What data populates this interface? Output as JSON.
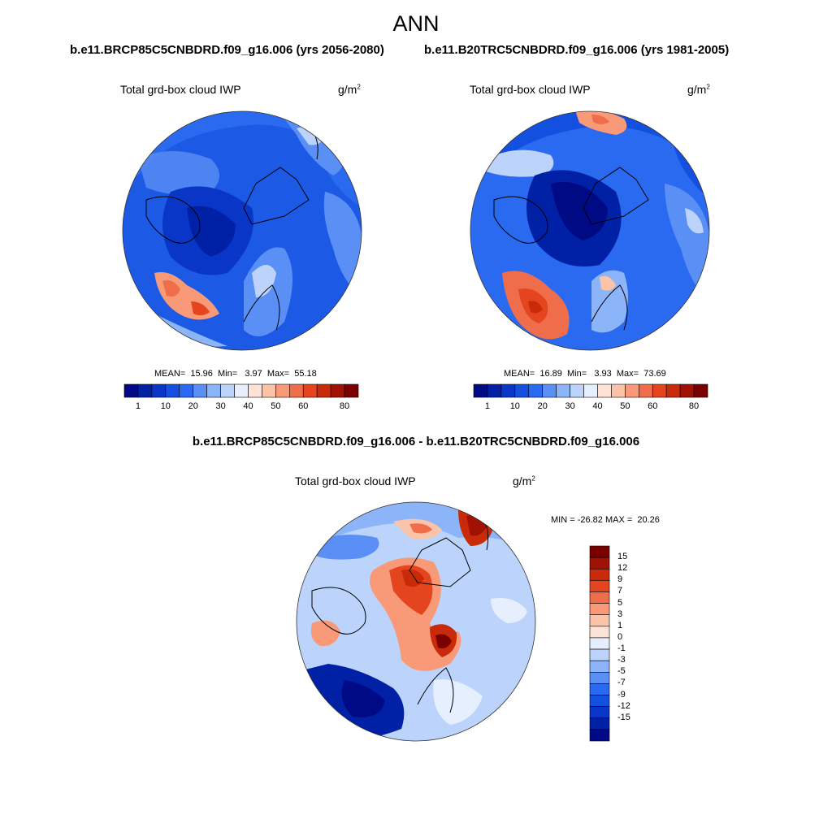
{
  "figure": {
    "season": "ANN",
    "variable": "Total grd-box cloud IWP",
    "units_base": "g/m",
    "units_exp": "2"
  },
  "panels": {
    "left": {
      "case": "b.e11.BRCP85C5CNBDRD.f09_g16.006 (yrs 2056-2080)",
      "stats_label_mean": "MEAN=",
      "stats_mean": "15.96",
      "stats_label_min": "Min=",
      "stats_min": "3.97",
      "stats_label_max": "Max=",
      "stats_max": "55.18"
    },
    "right": {
      "case": "b.e11.B20TRC5CNBDRD.f09_g16.006 (yrs 1981-2005)",
      "stats_label_mean": "MEAN=",
      "stats_mean": "16.89",
      "stats_label_min": "Min=",
      "stats_min": "3.93",
      "stats_label_max": "Max=",
      "stats_max": "73.69"
    },
    "diff": {
      "title": "b.e11.BRCP85C5CNBDRD.f09_g16.006 - b.e11.B20TRC5CNBDRD.f09_g16.006",
      "stats": "MIN = -26.82 MAX =  20.26"
    }
  },
  "colorbars": {
    "abs_colors": [
      "#000a85",
      "#0020a6",
      "#0a36c8",
      "#1450e0",
      "#2a6af0",
      "#5a8ff5",
      "#8cb4f8",
      "#bcd4fb",
      "#e6effd",
      "#fde3d6",
      "#fbc4a8",
      "#f89a78",
      "#f06d4b",
      "#e4451f",
      "#c82a0a",
      "#a01204",
      "#7a0000"
    ],
    "abs_labels": [
      "1",
      "10",
      "20",
      "30",
      "40",
      "50",
      "60",
      "80"
    ],
    "diff_colors": [
      "#000a85",
      "#0020a6",
      "#0a36c8",
      "#1450e0",
      "#2a6af0",
      "#5a8ff5",
      "#8cb4f8",
      "#bcd4fb",
      "#e6effd",
      "#fde3d6",
      "#fbc4a8",
      "#f89a78",
      "#f06d4b",
      "#e4451f",
      "#c82a0a",
      "#a01204",
      "#7a0000"
    ],
    "diff_labels": [
      "15",
      "12",
      "9",
      "7",
      "5",
      "3",
      "1",
      "0",
      "-1",
      "-3",
      "-5",
      "-7",
      "-9",
      "-12",
      "-15"
    ]
  }
}
